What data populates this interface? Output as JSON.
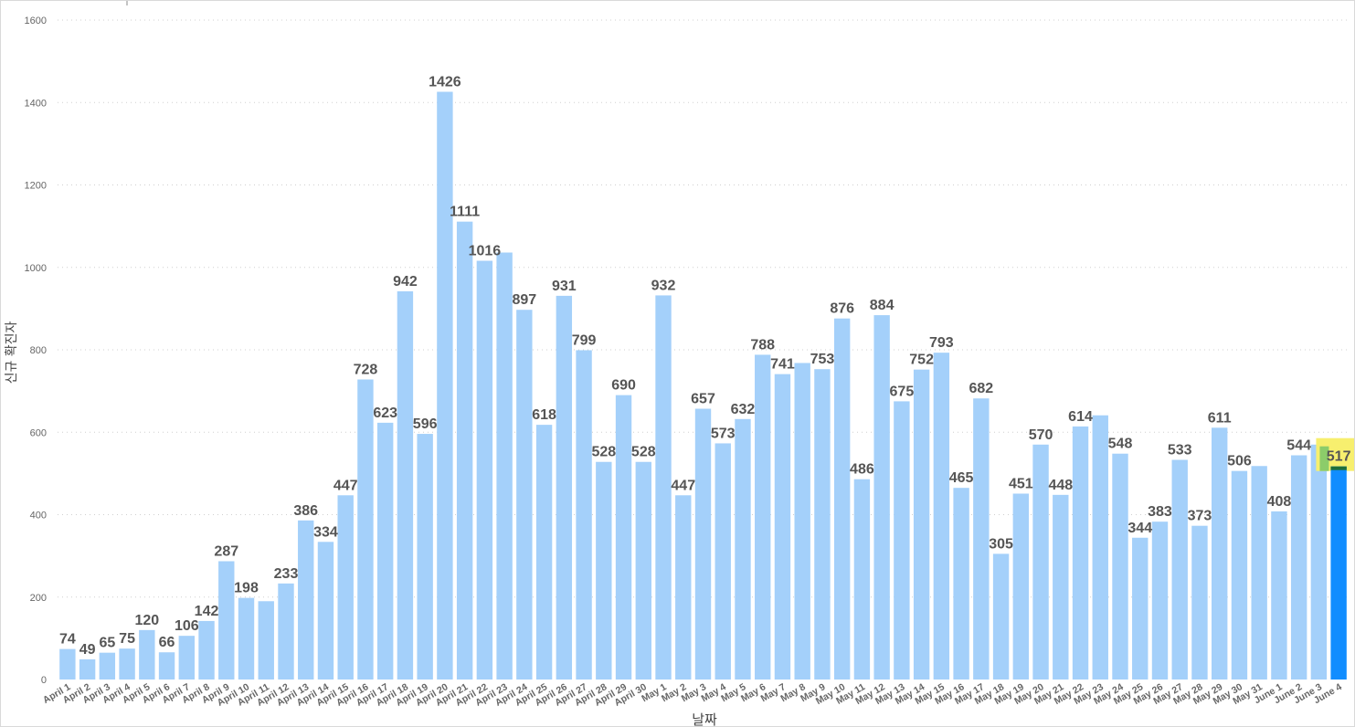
{
  "chart_data": {
    "type": "bar",
    "xlabel": "날짜",
    "ylabel": "신규 확진자",
    "ylim": [
      0,
      1600
    ],
    "yticks": [
      0,
      200,
      400,
      600,
      800,
      1000,
      1200,
      1400,
      1600
    ],
    "grid": "horizontal dotted",
    "categories": [
      "April 1",
      "April 2",
      "April 3",
      "April 4",
      "April 5",
      "April 6",
      "April 7",
      "April 8",
      "April 9",
      "April 10",
      "April 11",
      "April 12",
      "April 13",
      "April 14",
      "April 15",
      "April 16",
      "April 17",
      "April 18",
      "April 19",
      "April 20",
      "April 21",
      "April 22",
      "April 23",
      "April 24",
      "April 25",
      "April 26",
      "April 27",
      "April 28",
      "April 29",
      "April 30",
      "May 1",
      "May 2",
      "May 3",
      "May 4",
      "May 5",
      "May 6",
      "May 7",
      "May 8",
      "May 9",
      "May 10",
      "May 11",
      "May 12",
      "May 13",
      "May 14",
      "May 15",
      "May 16",
      "May 17",
      "May 18",
      "May 19",
      "May 20",
      "May 21",
      "May 22",
      "May 23",
      "May 24",
      "May 25",
      "May 26",
      "May 27",
      "May 28",
      "May 29",
      "May 30",
      "May 31",
      "June 1",
      "June 2",
      "June 3",
      "June 4"
    ],
    "values": [
      74,
      49,
      65,
      75,
      120,
      66,
      106,
      142,
      287,
      198,
      190,
      233,
      386,
      334,
      447,
      728,
      623,
      942,
      596,
      1426,
      1111,
      1016,
      1036,
      897,
      618,
      931,
      799,
      528,
      690,
      528,
      932,
      447,
      657,
      573,
      632,
      788,
      741,
      768,
      753,
      876,
      486,
      884,
      675,
      752,
      793,
      465,
      682,
      305,
      451,
      570,
      448,
      614,
      641,
      548,
      344,
      383,
      533,
      373,
      611,
      506,
      518,
      408,
      544,
      570,
      517
    ],
    "labels": [
      "74",
      "49",
      "65",
      "75",
      "120",
      "66",
      "106",
      "142",
      "287",
      "198",
      "",
      "233",
      "386",
      "334",
      "447",
      "728",
      "623",
      "942",
      "596",
      "1426",
      "1111",
      "1016",
      "",
      "897",
      "618",
      "931",
      "799",
      "528",
      "690",
      "528",
      "932",
      "447",
      "657",
      "573",
      "632",
      "788",
      "741",
      "",
      "753",
      "876",
      "486",
      "884",
      "675",
      "752",
      "793",
      "465",
      "682",
      "305",
      "451",
      "570",
      "448",
      "614",
      "",
      "548",
      "344",
      "383",
      "533",
      "373",
      "611",
      "506",
      "",
      "408",
      "544",
      "",
      "517"
    ],
    "highlight_index": 64,
    "colors": {
      "bar": "#a4d0fa",
      "highlight_bar": "#118dff",
      "highlight_label_bg": "#f7ef6e",
      "highlight_marker": "#8ccc6a",
      "highlight_top": "#1e6e3a",
      "label": "#555555",
      "axis_text": "#666666",
      "grid": "#cfcfcf"
    }
  }
}
